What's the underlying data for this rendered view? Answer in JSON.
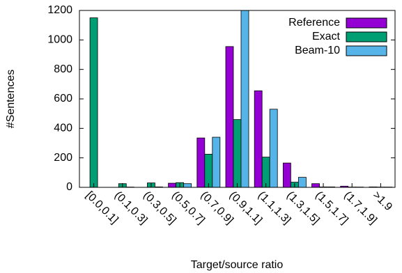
{
  "chart_data": {
    "type": "bar",
    "xlabel": "Target/source ratio",
    "ylabel": "#Sentences",
    "ylim": [
      0,
      1200
    ],
    "yticks": [
      0,
      200,
      400,
      600,
      800,
      1000,
      1200
    ],
    "grid": false,
    "legend_position": "top-right",
    "categories": [
      "[0.0,0.1]",
      "(0.1,0.3]",
      "(0.3,0.5]",
      "(0.5,0.7]",
      "(0.7,0.9]",
      "(0.9,1.1]",
      "(1.1,1.3]",
      "(1.3,1.5]",
      "(1.5,1.7]",
      "(1.7,1.9]",
      ">1.9"
    ],
    "series": [
      {
        "name": "Reference",
        "color": "#9400d3",
        "values": [
          0,
          0,
          0,
          28,
          335,
          955,
          655,
          165,
          25,
          8,
          3
        ]
      },
      {
        "name": "Exact",
        "color": "#009e73",
        "values": [
          1150,
          25,
          30,
          32,
          225,
          460,
          205,
          35,
          3,
          2,
          2
        ]
      },
      {
        "name": "Beam-10",
        "color": "#56b4e9",
        "values": [
          0,
          2,
          3,
          25,
          340,
          1200,
          530,
          68,
          3,
          2,
          2
        ]
      }
    ]
  }
}
